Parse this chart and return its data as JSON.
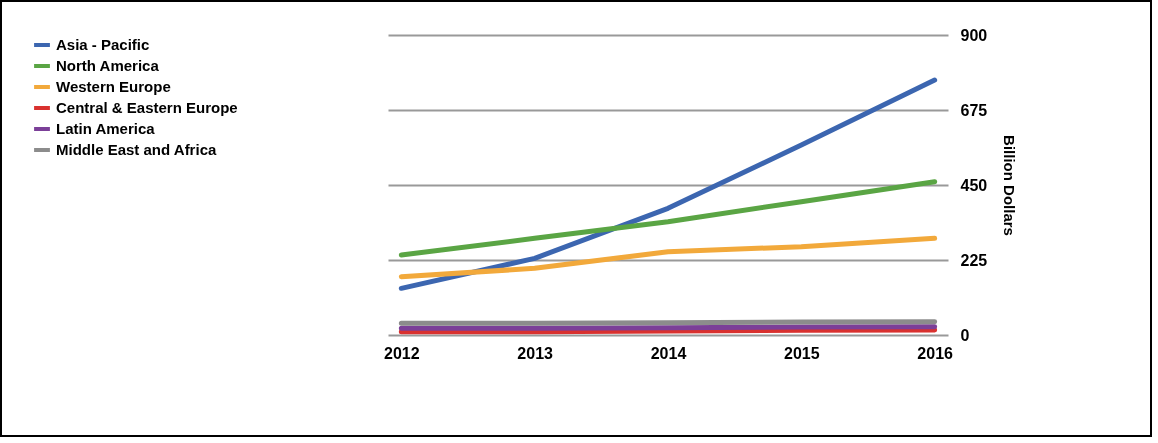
{
  "chart_data": {
    "type": "line",
    "ylabel": "Billion Dollars",
    "categories": [
      "2012",
      "2013",
      "2014",
      "2015",
      "2016"
    ],
    "series": [
      {
        "name": "Asia - Pacific",
        "color": "#3c66b0",
        "values": [
          140,
          230,
          380,
          570,
          765
        ]
      },
      {
        "name": "North America",
        "color": "#5aa544",
        "values": [
          240,
          290,
          340,
          400,
          460
        ]
      },
      {
        "name": "Western Europe",
        "color": "#f2a93b",
        "values": [
          175,
          200,
          250,
          265,
          290
        ]
      },
      {
        "name": "Central & Eastern Europe",
        "color": "#d9312f",
        "values": [
          10,
          10,
          12,
          14,
          15
        ]
      },
      {
        "name": "Latin America",
        "color": "#7b3f98",
        "values": [
          20,
          20,
          22,
          24,
          25
        ]
      },
      {
        "name": "Middle East and Africa",
        "color": "#8c8c8c",
        "values": [
          35,
          35,
          37,
          39,
          40
        ]
      }
    ],
    "ylim": [
      0,
      900
    ],
    "yticks": [
      0,
      225,
      450,
      675,
      900
    ],
    "grid": "y",
    "legend": "left",
    "marker": "none",
    "line_style": "solid"
  }
}
